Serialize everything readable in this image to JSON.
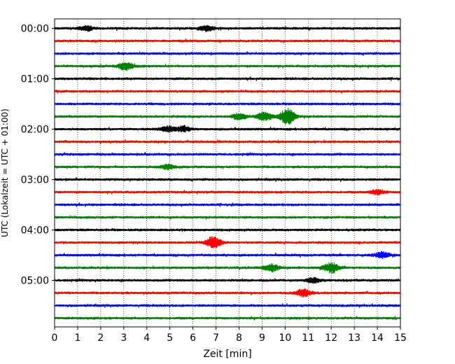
{
  "chart_data": {
    "type": "line",
    "title": "",
    "xlabel": "Zeit  [min]",
    "ylabel": "UTC (Lokalzeit = UTC + 01:00)",
    "xlim": [
      0,
      15
    ],
    "x_ticks": [
      "0",
      "1",
      "2",
      "3",
      "4",
      "5",
      "6",
      "7",
      "8",
      "9",
      "10",
      "11",
      "12",
      "13",
      "14",
      "15"
    ],
    "y_tick_labels": [
      "00:00",
      "01:00",
      "02:00",
      "03:00",
      "04:00",
      "05:00"
    ],
    "grid": "vertical dotted",
    "colors": [
      "#000000",
      "#ff0000",
      "#0000ff",
      "#008000"
    ],
    "trace_rows": [
      "00:00",
      "00:15",
      "00:30",
      "00:45",
      "01:00",
      "01:15",
      "01:30",
      "01:45",
      "02:00",
      "02:15",
      "02:30",
      "02:45",
      "03:00",
      "03:15",
      "03:30",
      "03:45",
      "04:00",
      "04:15",
      "04:30",
      "04:45",
      "05:00",
      "05:15",
      "05:30",
      "05:45"
    ],
    "events": [
      {
        "row": "00:00",
        "x": 1.4,
        "amp": 0.45
      },
      {
        "row": "00:00",
        "x": 6.6,
        "amp": 0.5
      },
      {
        "row": "00:45",
        "x": 3.1,
        "amp": 0.8
      },
      {
        "row": "01:45",
        "x": 8.0,
        "amp": 0.6
      },
      {
        "row": "01:45",
        "x": 9.1,
        "amp": 0.9
      },
      {
        "row": "01:45",
        "x": 10.1,
        "amp": 1.6
      },
      {
        "row": "02:00",
        "x": 4.9,
        "amp": 0.6
      },
      {
        "row": "02:00",
        "x": 5.6,
        "amp": 0.5
      },
      {
        "row": "02:45",
        "x": 4.9,
        "amp": 0.45
      },
      {
        "row": "03:15",
        "x": 14.0,
        "amp": 0.45
      },
      {
        "row": "04:15",
        "x": 6.9,
        "amp": 1.2
      },
      {
        "row": "04:30",
        "x": 14.2,
        "amp": 0.6
      },
      {
        "row": "04:45",
        "x": 9.4,
        "amp": 0.7
      },
      {
        "row": "04:45",
        "x": 12.0,
        "amp": 1.0
      },
      {
        "row": "05:00",
        "x": 11.2,
        "amp": 0.5
      },
      {
        "row": "05:15",
        "x": 10.8,
        "amp": 0.7
      }
    ]
  }
}
